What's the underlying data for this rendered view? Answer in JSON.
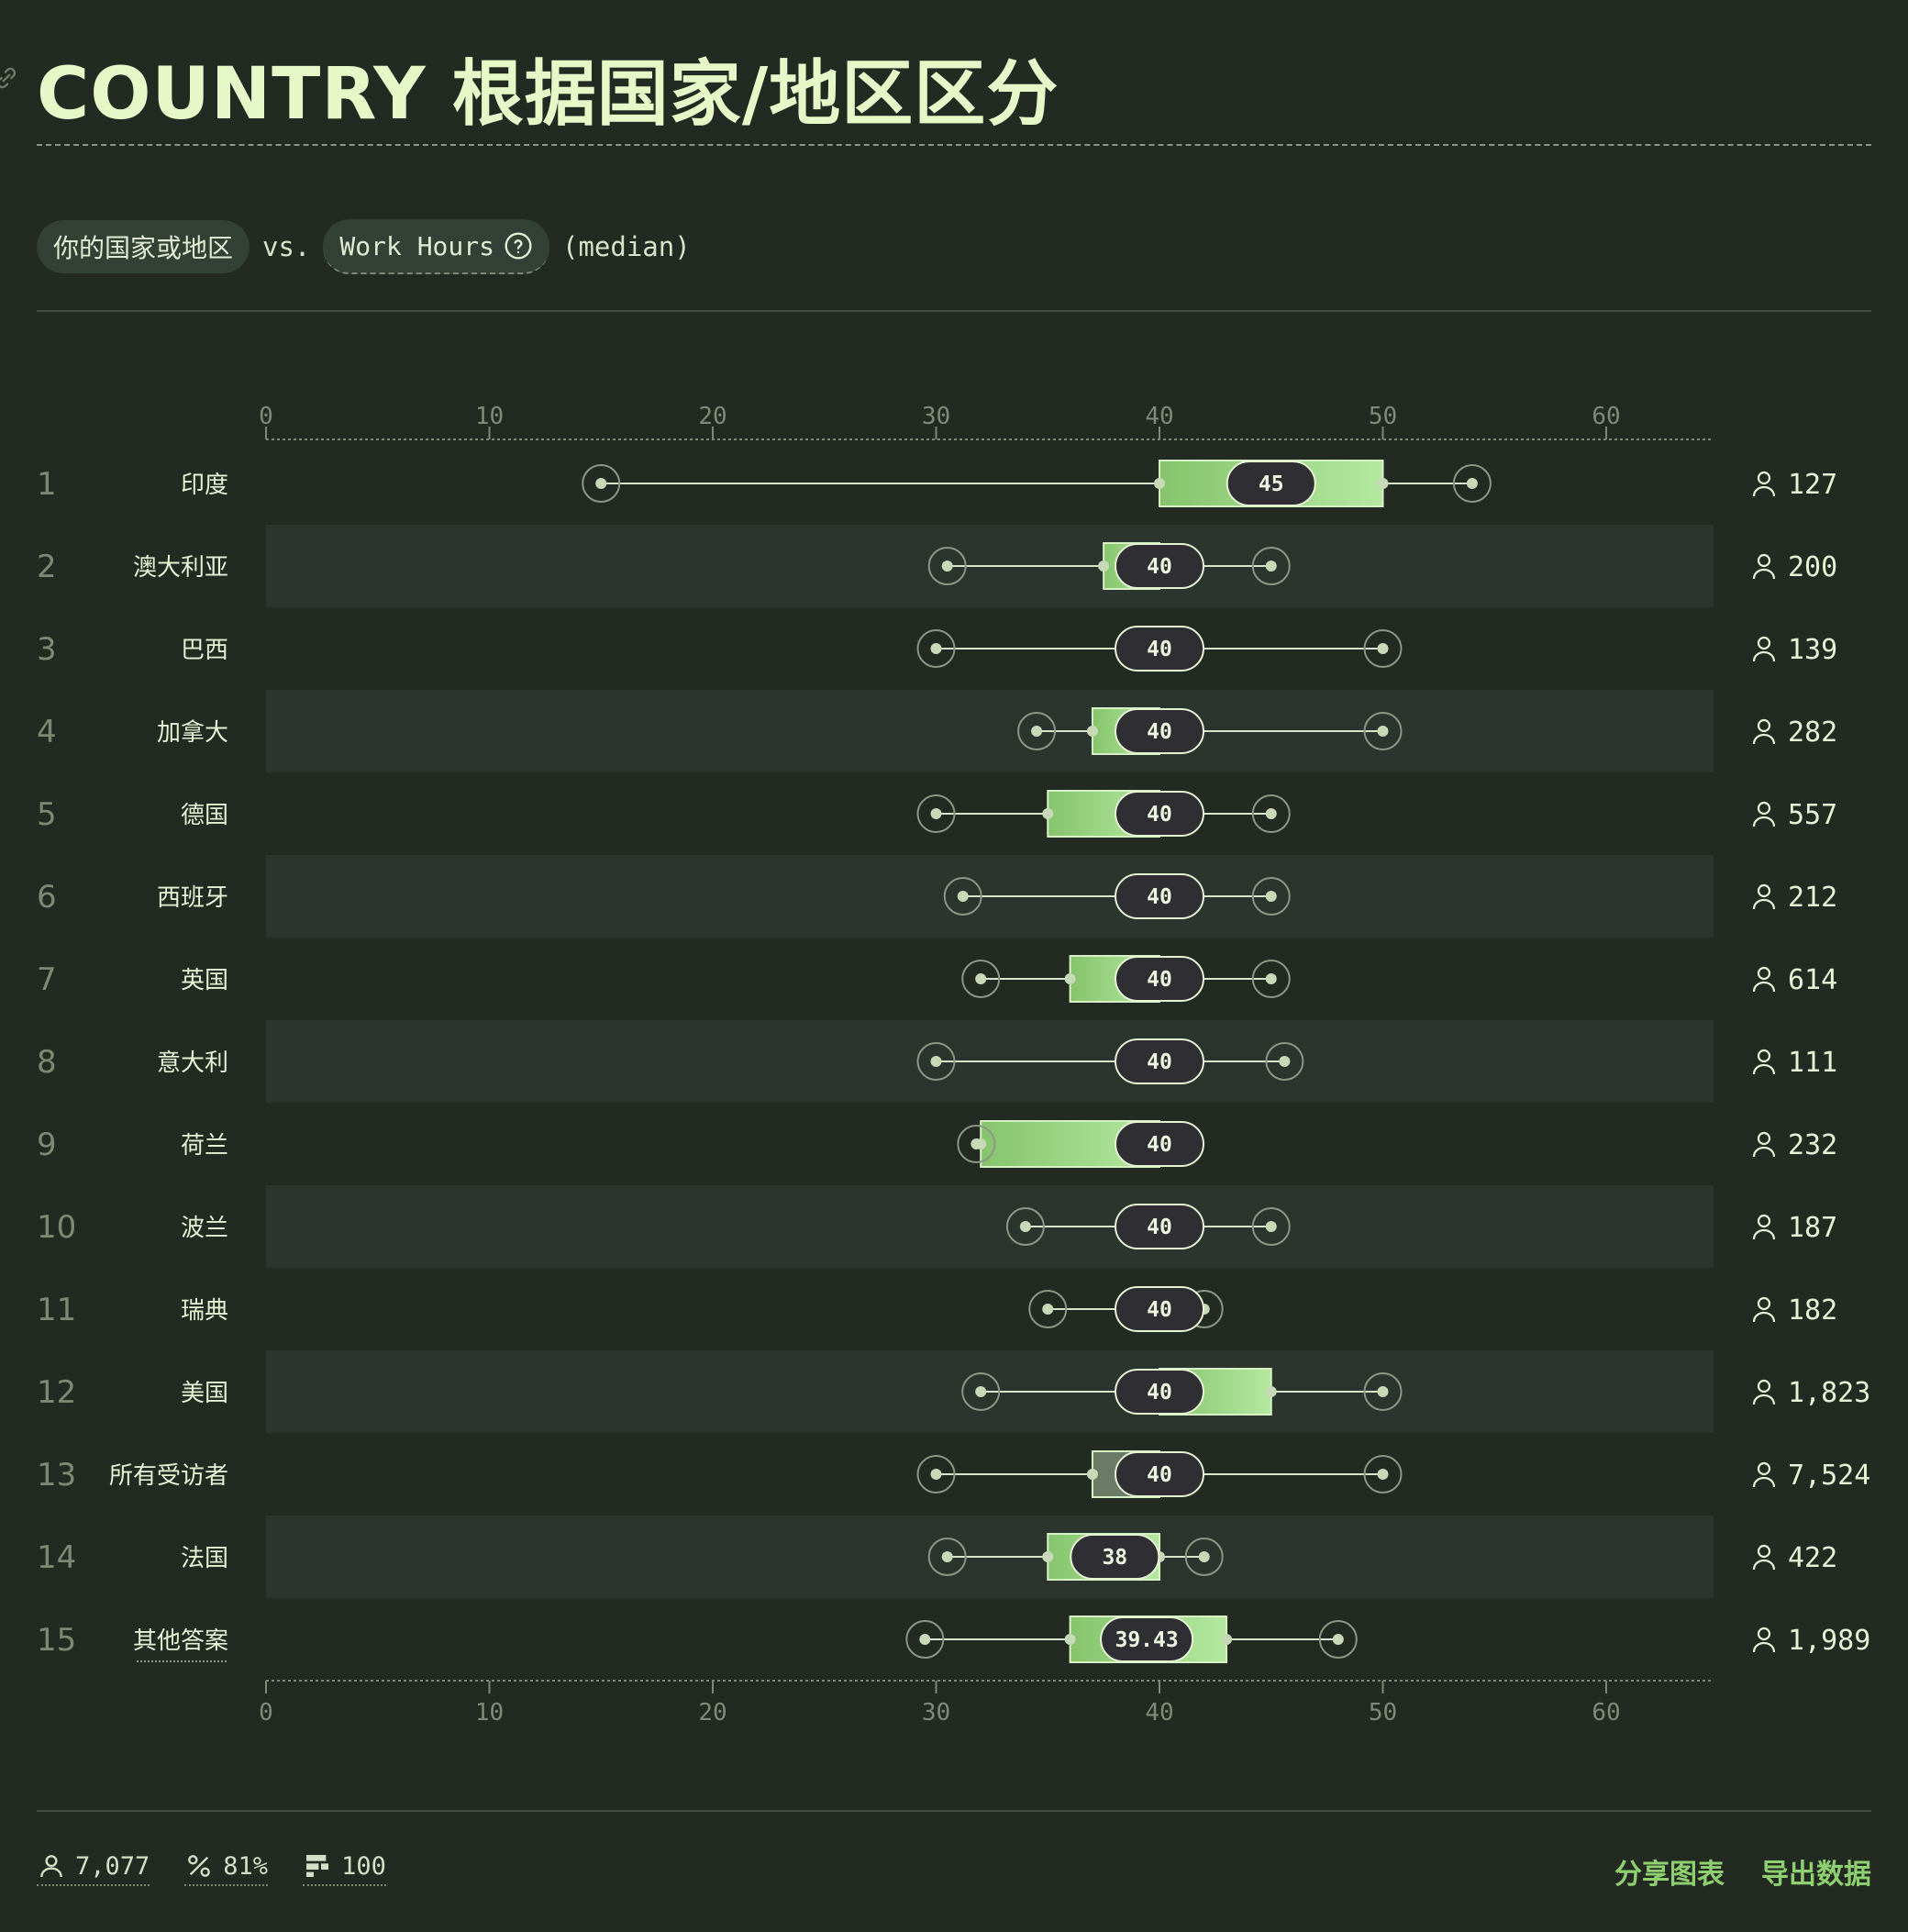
{
  "header": {
    "title": "COUNTRY 根据国家/地区区分"
  },
  "controls": {
    "group_label": "你的国家或地区",
    "vs_label": "vs.",
    "metric_label": "Work Hours",
    "stat_label": "(median)"
  },
  "chart_data": {
    "type": "box",
    "xlim": [
      0,
      65
    ],
    "ticks": [
      0,
      10,
      20,
      30,
      40,
      50,
      60
    ],
    "rows": [
      {
        "rank": "1",
        "name": "印度",
        "min": 15,
        "q1": 40,
        "median": 45,
        "q3": 50,
        "max": 54,
        "count": "127",
        "median_label": "45"
      },
      {
        "rank": "2",
        "name": "澳大利亚",
        "min": 30.5,
        "q1": 37.5,
        "median": 40,
        "q3": 40,
        "max": 45,
        "count": "200",
        "median_label": "40"
      },
      {
        "rank": "3",
        "name": "巴西",
        "min": 30,
        "q1": 40,
        "median": 40,
        "q3": 40,
        "max": 50,
        "count": "139",
        "median_label": "40"
      },
      {
        "rank": "4",
        "name": "加拿大",
        "min": 34.5,
        "q1": 37,
        "median": 40,
        "q3": 40,
        "max": 50,
        "count": "282",
        "median_label": "40"
      },
      {
        "rank": "5",
        "name": "德国",
        "min": 30,
        "q1": 35,
        "median": 40,
        "q3": 40,
        "max": 45,
        "count": "557",
        "median_label": "40"
      },
      {
        "rank": "6",
        "name": "西班牙",
        "min": 31.2,
        "q1": 40,
        "median": 40,
        "q3": 40,
        "max": 45,
        "count": "212",
        "median_label": "40"
      },
      {
        "rank": "7",
        "name": "英国",
        "min": 32,
        "q1": 36,
        "median": 40,
        "q3": 40,
        "max": 45,
        "count": "614",
        "median_label": "40"
      },
      {
        "rank": "8",
        "name": "意大利",
        "min": 30,
        "q1": 40,
        "median": 40,
        "q3": 40,
        "max": 45.6,
        "count": "111",
        "median_label": "40"
      },
      {
        "rank": "9",
        "name": "荷兰",
        "min": 31.8,
        "q1": 32,
        "median": 40,
        "q3": 40,
        "max": 40,
        "count": "232",
        "median_label": "40"
      },
      {
        "rank": "10",
        "name": "波兰",
        "min": 34,
        "q1": 40,
        "median": 40,
        "q3": 40,
        "max": 45,
        "count": "187",
        "median_label": "40"
      },
      {
        "rank": "11",
        "name": "瑞典",
        "min": 35,
        "q1": 40,
        "median": 40,
        "q3": 40,
        "max": 42,
        "count": "182",
        "median_label": "40"
      },
      {
        "rank": "12",
        "name": "美国",
        "min": 32,
        "q1": 40,
        "median": 40,
        "q3": 45,
        "max": 50,
        "count": "1,823",
        "median_label": "40"
      },
      {
        "rank": "13",
        "name": "所有受访者",
        "min": 30,
        "q1": 37,
        "median": 40,
        "q3": 40,
        "max": 50,
        "count": "7,524",
        "median_label": "40",
        "overall": true
      },
      {
        "rank": "14",
        "name": "法国",
        "min": 30.5,
        "q1": 35,
        "median": 38,
        "q3": 40,
        "max": 42,
        "count": "422",
        "median_label": "38"
      },
      {
        "rank": "15",
        "name": "其他答案",
        "min": 29.5,
        "q1": 36,
        "median": 39.43,
        "q3": 43,
        "max": 48,
        "count": "1,989",
        "median_label": "39.43",
        "underline": true
      }
    ]
  },
  "footer": {
    "stats": [
      {
        "icon": "person-icon",
        "value": "7,077"
      },
      {
        "icon": "percent-icon",
        "value": "81%"
      },
      {
        "icon": "bars-icon",
        "value": "100"
      }
    ],
    "share_label": "分享图表",
    "export_label": "导出数据"
  },
  "colors": {
    "background": "#232a21",
    "band": "#2b352e",
    "box_light": "#b4e8a0",
    "box_dark": "#86c46c",
    "pill": "#2f2f33",
    "accent": "#8ed06f"
  }
}
